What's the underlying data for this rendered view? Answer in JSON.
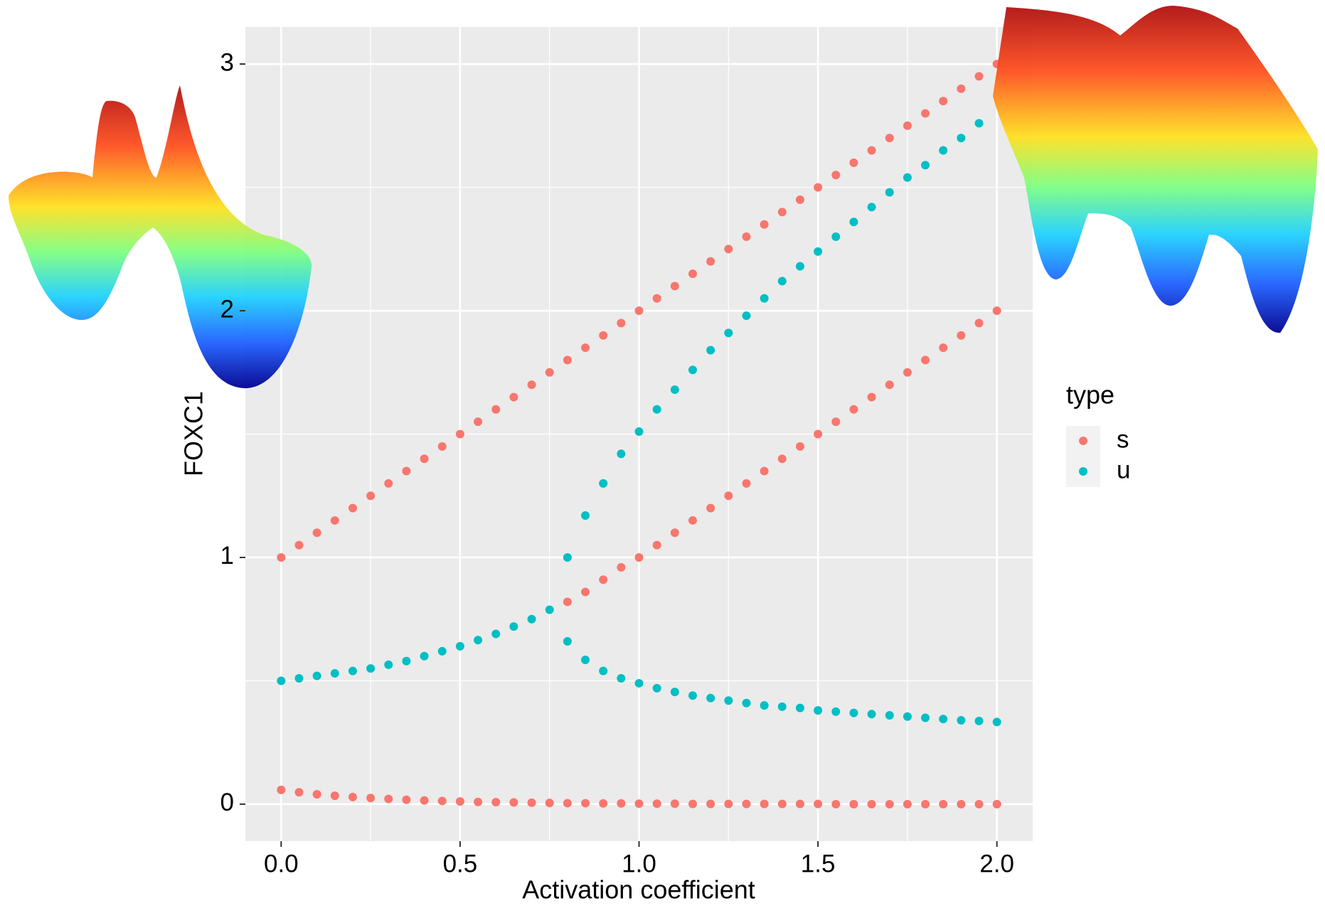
{
  "chart_data": {
    "type": "scatter",
    "x_label": "Activation coefficient",
    "y_label": "FOXC1",
    "legend_title": "type",
    "xlim": [
      -0.1,
      2.1
    ],
    "ylim": [
      -0.15,
      3.15
    ],
    "xticks": [
      {
        "value": 0,
        "label": "0.0"
      },
      0.5,
      {
        "value": 1,
        "label": "1.0"
      },
      1.5,
      {
        "value": 2,
        "label": "2.0"
      }
    ],
    "yticks": [
      0,
      1,
      2,
      3
    ],
    "grid": true,
    "legend": "right",
    "series": [
      {
        "name": "s",
        "color": "#F8766D",
        "x": [
          0,
          0.05,
          0.1,
          0.15,
          0.2,
          0.25,
          0.3,
          0.35,
          0.4,
          0.45,
          0.5,
          0.55,
          0.6,
          0.65,
          0.7,
          0.75,
          0.8,
          0.85,
          0.9,
          0.95,
          1,
          1.05,
          1.1,
          1.15,
          1.2,
          1.25,
          1.3,
          1.35,
          1.4,
          1.45,
          1.5,
          1.55,
          1.6,
          1.65,
          1.7,
          1.75,
          1.8,
          1.85,
          1.9,
          1.95,
          2,
          0.8,
          0.85,
          0.9,
          0.95,
          1,
          1.05,
          1.1,
          1.15,
          1.2,
          1.25,
          1.3,
          1.35,
          1.4,
          1.45,
          1.5,
          1.55,
          1.6,
          1.65,
          1.7,
          1.75,
          1.8,
          1.85,
          1.9,
          1.95,
          2,
          0,
          0.05,
          0.1,
          0.15,
          0.2,
          0.25,
          0.3,
          0.35,
          0.4,
          0.45,
          0.5,
          0.55,
          0.6,
          0.65,
          0.7,
          0.75,
          0.8,
          0.85,
          0.9,
          0.95,
          1,
          1.05,
          1.1,
          1.15,
          1.2,
          1.25,
          1.3,
          1.35,
          1.4,
          1.45,
          1.5,
          1.55,
          1.6,
          1.65,
          1.7,
          1.75,
          1.8,
          1.85,
          1.9,
          1.95,
          2
        ],
        "values": [
          1,
          1.05,
          1.1,
          1.15,
          1.2,
          1.25,
          1.3,
          1.35,
          1.4,
          1.45,
          1.5,
          1.55,
          1.6,
          1.65,
          1.7,
          1.75,
          1.8,
          1.85,
          1.9,
          1.95,
          2,
          2.05,
          2.1,
          2.15,
          2.2,
          2.25,
          2.3,
          2.35,
          2.4,
          2.45,
          2.5,
          2.55,
          2.6,
          2.65,
          2.7,
          2.75,
          2.8,
          2.85,
          2.9,
          2.95,
          3,
          0.82,
          0.86,
          0.91,
          0.96,
          1,
          1.05,
          1.1,
          1.15,
          1.2,
          1.25,
          1.3,
          1.35,
          1.4,
          1.45,
          1.5,
          1.55,
          1.6,
          1.65,
          1.7,
          1.75,
          1.8,
          1.85,
          1.9,
          1.95,
          2,
          0.058,
          0.048,
          0.04,
          0.034,
          0.029,
          0.025,
          0.021,
          0.018,
          0.015,
          0.013,
          0.011,
          0.009,
          0.008,
          0.007,
          0.006,
          0.005,
          0.004,
          0.004,
          0.003,
          0.003,
          0.002,
          0.002,
          0.002,
          0.001,
          0.001,
          0.001,
          0.001,
          0.001,
          0.001,
          0.001,
          0.001,
          0,
          0,
          0,
          0,
          0,
          0,
          0,
          0,
          0,
          0
        ]
      },
      {
        "name": "u",
        "color": "#00BFC4",
        "x": [
          0,
          0.05,
          0.1,
          0.15,
          0.2,
          0.25,
          0.3,
          0.35,
          0.4,
          0.45,
          0.5,
          0.55,
          0.6,
          0.65,
          0.7,
          0.75,
          0.8,
          0.85,
          0.9,
          0.95,
          1,
          1.05,
          1.1,
          1.15,
          1.2,
          1.25,
          1.3,
          1.35,
          1.4,
          1.45,
          1.5,
          1.55,
          1.6,
          1.65,
          1.7,
          1.75,
          1.8,
          1.85,
          1.9,
          1.95,
          2,
          0.8,
          0.85,
          0.9,
          0.95,
          1,
          1.05,
          1.1,
          1.15,
          1.2,
          1.25,
          1.3,
          1.35,
          1.4,
          1.45,
          1.5,
          1.55,
          1.6,
          1.65,
          1.7,
          1.75,
          1.8,
          1.85,
          1.9,
          1.95
        ],
        "values": [
          0.5,
          0.51,
          0.52,
          0.53,
          0.54,
          0.55,
          0.565,
          0.58,
          0.6,
          0.62,
          0.64,
          0.665,
          0.69,
          0.72,
          0.75,
          0.788,
          0.66,
          0.585,
          0.54,
          0.51,
          0.49,
          0.47,
          0.455,
          0.44,
          0.43,
          0.42,
          0.41,
          0.4,
          0.395,
          0.39,
          0.38,
          0.375,
          0.37,
          0.365,
          0.36,
          0.355,
          0.35,
          0.345,
          0.34,
          0.337,
          0.333,
          1,
          1.17,
          1.3,
          1.42,
          1.51,
          1.6,
          1.68,
          1.76,
          1.84,
          1.91,
          1.98,
          2.05,
          2.12,
          2.18,
          2.24,
          2.3,
          2.36,
          2.42,
          2.48,
          2.54,
          2.59,
          2.65,
          2.7,
          2.76
        ]
      }
    ]
  }
}
